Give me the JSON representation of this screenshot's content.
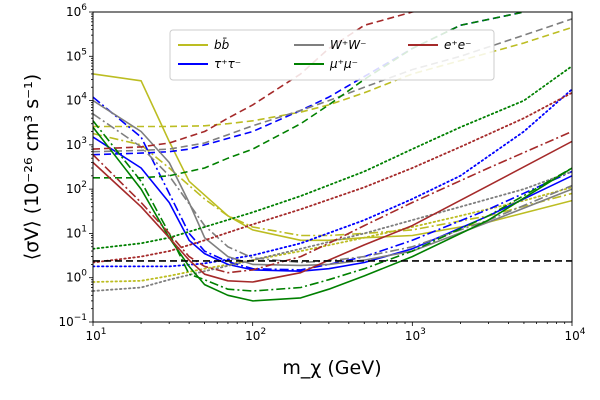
{
  "chart_data": {
    "type": "line",
    "xscale": "log",
    "yscale": "log",
    "xlim": [
      10,
      10000
    ],
    "ylim": [
      0.1,
      1000000
    ],
    "xlabel": "m_χ (GeV)",
    "ylabel": "⟨σV⟩ (10⁻²⁶ cm³ s⁻¹)",
    "x_ticks": [
      {
        "value": 10,
        "base": "10",
        "exp": "1"
      },
      {
        "value": 100,
        "base": "10",
        "exp": "2"
      },
      {
        "value": 1000,
        "base": "10",
        "exp": "3"
      },
      {
        "value": 10000,
        "base": "10",
        "exp": "4"
      }
    ],
    "y_ticks": [
      {
        "value": 0.1,
        "base": "10",
        "exp": "−1"
      },
      {
        "value": 1,
        "base": "10",
        "exp": "0"
      },
      {
        "value": 10,
        "base": "10",
        "exp": "1"
      },
      {
        "value": 100,
        "base": "10",
        "exp": "2"
      },
      {
        "value": 1000,
        "base": "10",
        "exp": "3"
      },
      {
        "value": 10000,
        "base": "10",
        "exp": "4"
      },
      {
        "value": 100000,
        "base": "10",
        "exp": "5"
      },
      {
        "value": 1000000,
        "base": "10",
        "exp": "6"
      }
    ],
    "legend": {
      "placement": "top-center",
      "entries": [
        {
          "label": "bb̄",
          "color": "#bcbd22"
        },
        {
          "label": "τ⁺τ⁻",
          "color": "#0000ff"
        },
        {
          "label": "W⁺W⁻",
          "color": "#7f7f7f"
        },
        {
          "label": "μ⁺μ⁻",
          "color": "#008000"
        },
        {
          "label": "e⁺e⁻",
          "color": "#a52a2a"
        }
      ]
    },
    "series": [
      {
        "channel": "bb̄",
        "color": "#bcbd22",
        "style": "solid",
        "x": [
          10,
          20,
          30,
          40,
          70,
          100,
          200,
          300,
          500,
          1000,
          3000,
          10000
        ],
        "y": [
          40000,
          28000,
          1200,
          150,
          25,
          12,
          7,
          7,
          8,
          9,
          18,
          55
        ]
      },
      {
        "channel": "bb̄",
        "color": "#bcbd22",
        "style": "dashed",
        "x": [
          10,
          20,
          30,
          50,
          70,
          100,
          200,
          300,
          500,
          1000,
          2000,
          5000,
          10000
        ],
        "y": [
          2600,
          2600,
          2600,
          2700,
          3000,
          3500,
          5500,
          8000,
          15000,
          40000,
          80000,
          200000,
          450000
        ]
      },
      {
        "channel": "bb̄",
        "color": "#bcbd22",
        "style": "dashdot",
        "x": [
          10,
          20,
          30,
          50,
          70,
          100,
          200,
          300,
          500,
          1000,
          3000,
          10000
        ],
        "y": [
          1800,
          1000,
          300,
          60,
          25,
          14,
          9,
          9,
          10,
          12,
          25,
          80
        ]
      },
      {
        "channel": "bb̄",
        "color": "#bcbd22",
        "style": "dotted",
        "x": [
          10,
          20,
          30,
          50,
          100,
          200,
          500,
          1000,
          2000,
          5000,
          10000
        ],
        "y": [
          0.8,
          0.85,
          1.1,
          1.6,
          2.5,
          4,
          8,
          14,
          25,
          55,
          110
        ]
      },
      {
        "channel": "τ⁺τ⁻",
        "color": "#0000ff",
        "style": "solid",
        "x": [
          10,
          20,
          30,
          40,
          50,
          70,
          100,
          200,
          300,
          500,
          1000,
          3000,
          10000
        ],
        "y": [
          1500,
          300,
          50,
          7,
          3.5,
          2,
          1.5,
          1.4,
          1.6,
          2.2,
          4.5,
          25,
          200
        ]
      },
      {
        "channel": "τ⁺τ⁻",
        "color": "#0000ff",
        "style": "dashed",
        "x": [
          10,
          20,
          30,
          40,
          50,
          100,
          200,
          300,
          500,
          1000,
          2000,
          5000
        ],
        "y": [
          600,
          650,
          700,
          800,
          1000,
          2000,
          6000,
          12000,
          35000,
          150000,
          500000,
          1000000
        ]
      },
      {
        "channel": "τ⁺τ⁻",
        "color": "#0000ff",
        "style": "dashdot",
        "x": [
          10,
          20,
          30,
          40,
          50,
          70,
          100,
          200,
          300,
          500,
          1000,
          3000,
          10000
        ],
        "y": [
          12000,
          1500,
          80,
          10,
          4,
          2.3,
          1.6,
          1.5,
          2,
          3,
          7,
          35,
          250
        ]
      },
      {
        "channel": "τ⁺τ⁻",
        "color": "#0000ff",
        "style": "dotted",
        "x": [
          10,
          20,
          30,
          50,
          100,
          200,
          500,
          1000,
          2000,
          5000,
          10000
        ],
        "y": [
          1.8,
          1.8,
          1.8,
          2.1,
          3.2,
          6,
          20,
          60,
          200,
          2000,
          18000
        ]
      },
      {
        "channel": "W⁺W⁻",
        "color": "#7f7f7f",
        "style": "solid",
        "x": [
          10,
          20,
          30,
          40,
          50,
          70,
          100,
          200,
          300,
          500,
          1000,
          3000,
          10000
        ],
        "y": [
          10000,
          2000,
          400,
          50,
          8,
          3,
          2,
          1.9,
          2,
          2.5,
          4,
          18,
          100
        ]
      },
      {
        "channel": "W⁺W⁻",
        "color": "#7f7f7f",
        "style": "dashed",
        "x": [
          10,
          20,
          30,
          50,
          70,
          100,
          200,
          300,
          500,
          1000,
          2000,
          5000,
          10000
        ],
        "y": [
          700,
          750,
          800,
          1100,
          1700,
          2700,
          6000,
          10000,
          20000,
          50000,
          100000,
          300000,
          700000
        ]
      },
      {
        "channel": "W⁺W⁻",
        "color": "#7f7f7f",
        "style": "dashdot",
        "x": [
          10,
          20,
          30,
          50,
          70,
          100,
          200,
          300,
          500,
          1000,
          3000,
          10000
        ],
        "y": [
          5000,
          900,
          200,
          15,
          5,
          2.8,
          2.2,
          2.4,
          3,
          5,
          20,
          120
        ]
      },
      {
        "channel": "W⁺W⁻",
        "color": "#7f7f7f",
        "style": "dotted",
        "x": [
          10,
          20,
          30,
          50,
          100,
          200,
          500,
          1000,
          2000,
          5000,
          10000
        ],
        "y": [
          0.5,
          0.6,
          0.9,
          1.4,
          2.5,
          4.5,
          10,
          20,
          40,
          100,
          250
        ]
      },
      {
        "channel": "μ⁺μ⁻",
        "color": "#008000",
        "style": "solid",
        "x": [
          10,
          20,
          30,
          40,
          50,
          70,
          100,
          200,
          300,
          500,
          1000,
          3000,
          10000
        ],
        "y": [
          2500,
          100,
          8,
          1.8,
          0.7,
          0.4,
          0.3,
          0.35,
          0.55,
          1.1,
          3,
          20,
          300
        ]
      },
      {
        "channel": "μ⁺μ⁻",
        "color": "#008000",
        "style": "dashed",
        "x": [
          10,
          20,
          30,
          50,
          70,
          100,
          200,
          300,
          500,
          1000,
          2000,
          5000
        ],
        "y": [
          180,
          180,
          200,
          300,
          500,
          800,
          3000,
          8000,
          30000,
          150000,
          500000,
          1000000
        ]
      },
      {
        "channel": "μ⁺μ⁻",
        "color": "#008000",
        "style": "dashdot",
        "x": [
          10,
          20,
          30,
          40,
          50,
          70,
          100,
          200,
          300,
          500,
          1000,
          3000,
          10000
        ],
        "y": [
          3500,
          150,
          10,
          1.2,
          0.9,
          0.55,
          0.5,
          0.6,
          0.9,
          1.6,
          4,
          25,
          300
        ]
      },
      {
        "channel": "μ⁺μ⁻",
        "color": "#008000",
        "style": "dotted",
        "x": [
          10,
          20,
          30,
          50,
          100,
          200,
          500,
          1000,
          2000,
          5000,
          10000
        ],
        "y": [
          4.5,
          6,
          8,
          14,
          30,
          70,
          250,
          800,
          2500,
          10000,
          60000
        ]
      },
      {
        "channel": "e⁺e⁻",
        "color": "#a52a2a",
        "style": "solid",
        "x": [
          10,
          20,
          30,
          40,
          50,
          70,
          100,
          200,
          300,
          500,
          1000,
          3000,
          10000
        ],
        "y": [
          400,
          40,
          8,
          2.5,
          1.2,
          0.85,
          0.8,
          1.3,
          2.5,
          5.5,
          15,
          120,
          1200
        ]
      },
      {
        "channel": "e⁺e⁻",
        "color": "#a52a2a",
        "style": "dashed",
        "x": [
          10,
          20,
          30,
          50,
          70,
          100,
          200,
          300,
          500,
          1000,
          2000
        ],
        "y": [
          800,
          900,
          1100,
          2000,
          4000,
          8000,
          40000,
          150000,
          500000,
          1000000,
          1500000
        ]
      },
      {
        "channel": "e⁺e⁻",
        "color": "#a52a2a",
        "style": "dashdot",
        "x": [
          10,
          20,
          30,
          40,
          50,
          70,
          100,
          200,
          300,
          500,
          1000,
          3000,
          10000
        ],
        "y": [
          600,
          50,
          10,
          3,
          1.8,
          1.3,
          1.5,
          3,
          6,
          15,
          50,
          300,
          2000
        ]
      },
      {
        "channel": "e⁺e⁻",
        "color": "#a52a2a",
        "style": "dotted",
        "x": [
          10,
          20,
          30,
          50,
          100,
          200,
          500,
          1000,
          2000,
          5000,
          10000
        ],
        "y": [
          2.2,
          3,
          4,
          7,
          16,
          35,
          110,
          300,
          900,
          4000,
          15000
        ]
      },
      {
        "channel": "reference",
        "color": "#000000",
        "style": "dashed",
        "x": [
          10,
          10000
        ],
        "y": [
          2.4,
          2.4
        ]
      }
    ]
  }
}
